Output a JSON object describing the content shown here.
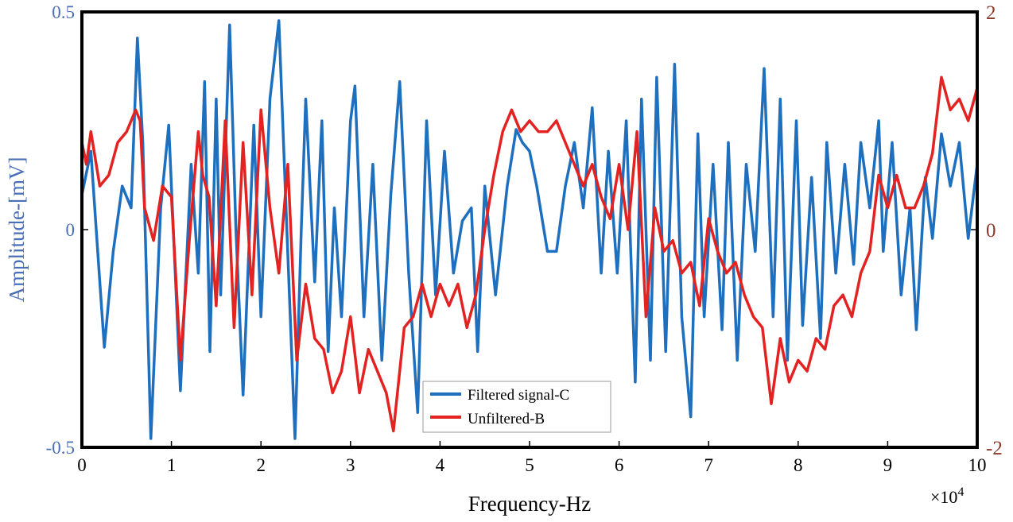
{
  "chart_data": {
    "type": "line",
    "title": "",
    "xlabel": "Frequency-Hz",
    "x_multiplier": "×10",
    "x_multiplier_exp": "4",
    "ylabel_left": "Amplitude-[mV]",
    "xlim": [
      0,
      10
    ],
    "ylim_left": [
      -0.5,
      0.5
    ],
    "ylim_right": [
      -2,
      2
    ],
    "x_ticks": [
      "0",
      "1",
      "2",
      "3",
      "4",
      "5",
      "6",
      "7",
      "8",
      "9",
      "10"
    ],
    "y_left_ticks": [
      "-0.5",
      "0",
      "0.5"
    ],
    "y_right_ticks": [
      "-2",
      "0",
      "2"
    ],
    "legend_position": "bottom-center",
    "series": [
      {
        "name": "Filtered signal-C",
        "axis": "left",
        "color": "#1f6fbf",
        "x": [
          0,
          0.1,
          0.2,
          0.25,
          0.35,
          0.45,
          0.55,
          0.62,
          0.68,
          0.77,
          0.88,
          0.97,
          1.1,
          1.22,
          1.3,
          1.37,
          1.43,
          1.5,
          1.55,
          1.65,
          1.72,
          1.8,
          1.92,
          2.0,
          2.1,
          2.2,
          2.28,
          2.38,
          2.45,
          2.5,
          2.6,
          2.68,
          2.75,
          2.82,
          2.9,
          3.0,
          3.05,
          3.15,
          3.25,
          3.35,
          3.45,
          3.55,
          3.65,
          3.75,
          3.85,
          3.95,
          4.05,
          4.15,
          4.25,
          4.35,
          4.42,
          4.5,
          4.62,
          4.75,
          4.85,
          4.92,
          5.0,
          5.08,
          5.2,
          5.3,
          5.4,
          5.5,
          5.6,
          5.7,
          5.8,
          5.88,
          5.98,
          6.08,
          6.18,
          6.25,
          6.35,
          6.42,
          6.52,
          6.62,
          6.7,
          6.8,
          6.88,
          6.95,
          7.05,
          7.15,
          7.22,
          7.32,
          7.42,
          7.52,
          7.62,
          7.72,
          7.8,
          7.88,
          7.98,
          8.05,
          8.15,
          8.25,
          8.32,
          8.42,
          8.52,
          8.62,
          8.7,
          8.8,
          8.9,
          8.95,
          9.05,
          9.15,
          9.25,
          9.32,
          9.42,
          9.5,
          9.6,
          9.7,
          9.8,
          9.9,
          10.0
        ],
        "y": [
          0.08,
          0.18,
          -0.12,
          -0.27,
          -0.05,
          0.1,
          0.05,
          0.44,
          0.2,
          -0.48,
          0.05,
          0.24,
          -0.37,
          0.15,
          -0.1,
          0.34,
          -0.28,
          0.3,
          -0.15,
          0.47,
          0.0,
          -0.38,
          0.24,
          -0.2,
          0.3,
          0.48,
          0.05,
          -0.48,
          0.0,
          0.3,
          -0.12,
          0.25,
          -0.28,
          0.05,
          -0.2,
          0.25,
          0.33,
          -0.2,
          0.15,
          -0.3,
          0.08,
          0.34,
          -0.1,
          -0.42,
          0.25,
          -0.15,
          0.18,
          -0.1,
          0.02,
          0.05,
          -0.28,
          0.1,
          -0.15,
          0.1,
          0.23,
          0.2,
          0.18,
          0.1,
          -0.05,
          -0.05,
          0.1,
          0.2,
          0.05,
          0.28,
          -0.1,
          0.18,
          -0.1,
          0.25,
          -0.35,
          0.3,
          -0.3,
          0.35,
          -0.28,
          0.38,
          -0.2,
          -0.43,
          0.22,
          -0.2,
          0.15,
          -0.23,
          0.2,
          -0.3,
          0.15,
          -0.05,
          0.37,
          -0.2,
          0.3,
          -0.3,
          0.25,
          -0.22,
          0.12,
          -0.25,
          0.2,
          -0.1,
          0.15,
          -0.08,
          0.2,
          0.05,
          0.25,
          -0.05,
          0.2,
          -0.15,
          0.05,
          -0.23,
          0.12,
          -0.02,
          0.22,
          0.1,
          0.2,
          -0.02,
          0.15
        ]
      },
      {
        "name": "Unfiltered-B",
        "axis": "right",
        "color": "#e32222",
        "x": [
          0,
          0.05,
          0.1,
          0.2,
          0.3,
          0.4,
          0.5,
          0.6,
          0.65,
          0.7,
          0.8,
          0.9,
          1.0,
          1.1,
          1.2,
          1.3,
          1.35,
          1.42,
          1.5,
          1.6,
          1.7,
          1.8,
          1.9,
          2.0,
          2.1,
          2.2,
          2.3,
          2.4,
          2.5,
          2.6,
          2.7,
          2.8,
          2.9,
          3.0,
          3.1,
          3.2,
          3.3,
          3.4,
          3.48,
          3.55,
          3.6,
          3.7,
          3.8,
          3.9,
          4.0,
          4.1,
          4.2,
          4.3,
          4.4,
          4.5,
          4.6,
          4.7,
          4.8,
          4.9,
          5.0,
          5.1,
          5.2,
          5.3,
          5.4,
          5.5,
          5.6,
          5.7,
          5.8,
          5.9,
          6.0,
          6.1,
          6.2,
          6.3,
          6.4,
          6.5,
          6.6,
          6.7,
          6.8,
          6.9,
          7.0,
          7.1,
          7.2,
          7.3,
          7.4,
          7.5,
          7.6,
          7.7,
          7.8,
          7.9,
          8.0,
          8.1,
          8.2,
          8.3,
          8.4,
          8.5,
          8.6,
          8.7,
          8.8,
          8.9,
          9.0,
          9.1,
          9.2,
          9.3,
          9.4,
          9.5,
          9.6,
          9.7,
          9.8,
          9.9,
          10.0
        ],
        "y": [
          0.8,
          0.6,
          0.9,
          0.4,
          0.5,
          0.8,
          0.9,
          1.1,
          1.0,
          0.2,
          -0.1,
          0.4,
          0.3,
          -1.2,
          -0.1,
          0.9,
          0.5,
          0.3,
          -0.7,
          1.0,
          -0.9,
          0.8,
          -0.6,
          1.1,
          0.2,
          -0.4,
          0.6,
          -1.2,
          -0.5,
          -1.0,
          -1.1,
          -1.5,
          -1.3,
          -0.8,
          -1.5,
          -1.1,
          -1.3,
          -1.5,
          -1.85,
          -1.3,
          -0.9,
          -0.8,
          -0.5,
          -0.8,
          -0.5,
          -0.7,
          -0.5,
          -0.9,
          -0.6,
          0.0,
          0.5,
          0.9,
          1.1,
          0.9,
          1.0,
          0.9,
          0.9,
          1.0,
          0.8,
          0.6,
          0.4,
          0.6,
          0.3,
          0.1,
          0.6,
          0.0,
          0.9,
          -0.8,
          0.2,
          -0.2,
          -0.1,
          -0.4,
          -0.3,
          -0.7,
          0.1,
          -0.2,
          -0.4,
          -0.3,
          -0.6,
          -0.8,
          -0.9,
          -1.6,
          -1.0,
          -1.4,
          -1.2,
          -1.3,
          -1.0,
          -1.1,
          -0.7,
          -0.6,
          -0.8,
          -0.4,
          -0.2,
          0.5,
          0.2,
          0.5,
          0.2,
          0.2,
          0.4,
          0.7,
          1.4,
          1.1,
          1.2,
          1.0,
          1.3
        ]
      }
    ]
  }
}
